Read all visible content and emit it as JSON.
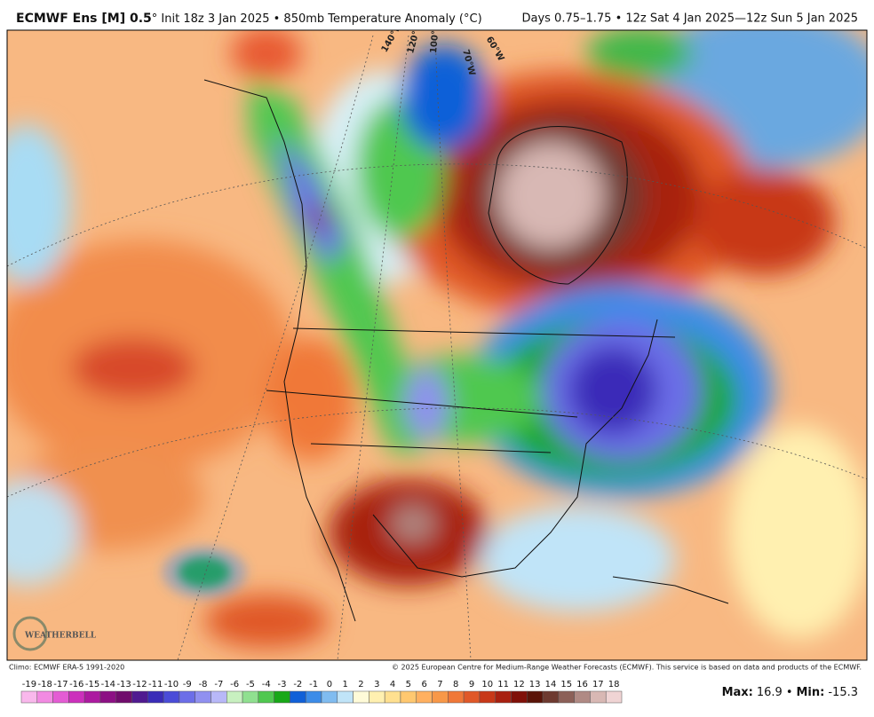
{
  "header": {
    "title_bold": "ECMWF Ens [M] 0.5",
    "title_rest": "° Init 18z 3 Jan 2025 • 850mb Temperature Anomaly (°C)",
    "valid": "Days 0.75–1.75 • 12z Sat 4 Jan 2025—12z Sun 5 Jan 2025"
  },
  "map": {
    "longitude_labels": [
      "140°W",
      "120°W",
      "100°W",
      "70°W",
      "60°W"
    ],
    "logo": "WEATHERBELL"
  },
  "footer": {
    "climo": "Climo: ECMWF ERA-5 1991-2020",
    "copyright": "© 2025 European Centre for Medium-Range Weather Forecasts (ECMWF). This service is based on data and products of the ECMWF."
  },
  "colorbar": {
    "ticks": [
      -19,
      -18,
      -17,
      -16,
      -15,
      -14,
      -13,
      -12,
      -11,
      -10,
      -9,
      -8,
      -7,
      -6,
      -5,
      -4,
      -3,
      -2,
      -1,
      0,
      1,
      2,
      3,
      4,
      5,
      6,
      7,
      8,
      9,
      10,
      11,
      12,
      13,
      14,
      15,
      16,
      17,
      18
    ],
    "colors": [
      "#f9b8ec",
      "#f28ae2",
      "#e45cd4",
      "#cc30bc",
      "#ac1aa0",
      "#8c1084",
      "#700c6c",
      "#501a90",
      "#3a2cb8",
      "#4a4cd8",
      "#6c6ee8",
      "#9090f0",
      "#b8b8f8",
      "#c8f0c0",
      "#90e090",
      "#50c850",
      "#18a818",
      "#1060d8",
      "#3c8ce8",
      "#80bcf0",
      "#c0e4f8",
      "#fffbd8",
      "#fff0b0",
      "#ffe090",
      "#ffc870",
      "#ffb060",
      "#f89848",
      "#f07838",
      "#e05828",
      "#c83818",
      "#a82010",
      "#801008",
      "#5a1408",
      "#6e3a30",
      "#8c6058",
      "#b08a84",
      "#d8b8b4",
      "#f0d4d4"
    ]
  },
  "stats": {
    "max_label": "Max:",
    "max": 16.9,
    "separator": "•",
    "min_label": "Min:",
    "min": -15.3
  }
}
